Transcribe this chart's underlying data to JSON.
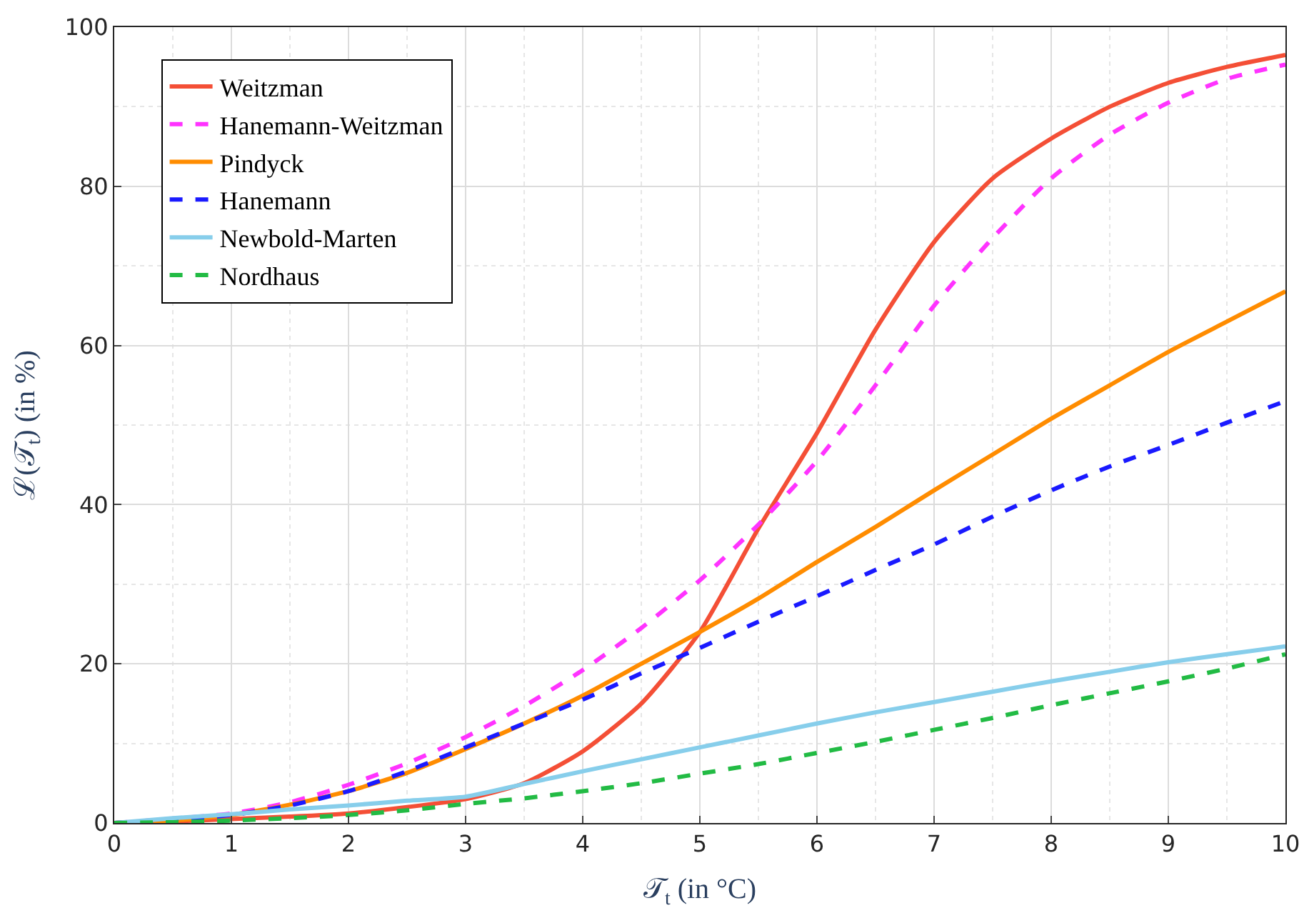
{
  "chart_data": {
    "type": "line",
    "xlabel": "𝒯$_{t}$ (in °C)",
    "ylabel": "ℒ(𝒯$_{t}$) (in %)",
    "xlim": [
      0,
      10
    ],
    "ylim": [
      0,
      100
    ],
    "xticks": [
      0,
      1,
      2,
      3,
      4,
      5,
      6,
      7,
      8,
      9,
      10
    ],
    "yticks": [
      0,
      20,
      40,
      60,
      80,
      100
    ],
    "grid": true,
    "legend": "top left",
    "marker": "none",
    "x": [
      0,
      0.5,
      1,
      1.5,
      2,
      2.5,
      3,
      3.5,
      4,
      4.5,
      5,
      5.5,
      6,
      6.5,
      7,
      7.5,
      8,
      8.5,
      9,
      9.5,
      10
    ],
    "series": [
      {
        "name": "Weitzman",
        "color": "#f44f36",
        "line_style": "solid",
        "values": [
          0,
          0.2,
          0.5,
          0.8,
          1.2,
          2,
          3,
          5,
          9,
          15,
          24,
          37,
          49,
          62,
          73,
          81,
          86,
          90,
          93,
          95,
          96.5
        ]
      },
      {
        "name": "Hanemann-Weitzman",
        "color": "#ff33ff",
        "line_style": "dashed",
        "values": [
          0,
          null,
          1.2,
          2.6,
          4.8,
          7.5,
          10.8,
          14.7,
          19.2,
          24.5,
          30.5,
          37.5,
          45.5,
          55,
          65,
          73.5,
          81,
          86.5,
          90.5,
          93.5,
          95.3
        ]
      },
      {
        "name": "Pindyck",
        "color": "#ff8c00",
        "line_style": "solid",
        "values": [
          0,
          0.3,
          1,
          2.3,
          4,
          6.3,
          9.3,
          12.5,
          16,
          20,
          24,
          28.2,
          32.8,
          37.2,
          41.8,
          46.3,
          50.8,
          55,
          59.2,
          63,
          66.8
        ]
      },
      {
        "name": "Hanemann",
        "color": "#1a1aff",
        "line_style": "dashed",
        "values": [
          0,
          null,
          1,
          2.2,
          4,
          6.5,
          9.5,
          12.5,
          15.5,
          18.8,
          22,
          25.3,
          28.5,
          31.8,
          35,
          38.5,
          41.8,
          44.8,
          47.5,
          50.3,
          53
        ]
      },
      {
        "name": "Newbold-Marten",
        "color": "#87ceeb",
        "line_style": "solid",
        "values": [
          0,
          0.6,
          1.1,
          1.7,
          2.2,
          2.8,
          3.3,
          4.9,
          6.5,
          8,
          9.5,
          11,
          12.5,
          13.9,
          15.2,
          16.5,
          17.8,
          19,
          20.2,
          21.2,
          22.2
        ]
      },
      {
        "name": "Nordhaus",
        "color": "#22bb44",
        "line_style": "dashed",
        "values": [
          0,
          0.1,
          0.3,
          0.6,
          1,
          1.6,
          2.4,
          3.1,
          4,
          5,
          6.2,
          7.4,
          8.8,
          10.2,
          11.7,
          13.2,
          14.8,
          16.3,
          17.8,
          19.4,
          21.2
        ]
      }
    ]
  }
}
